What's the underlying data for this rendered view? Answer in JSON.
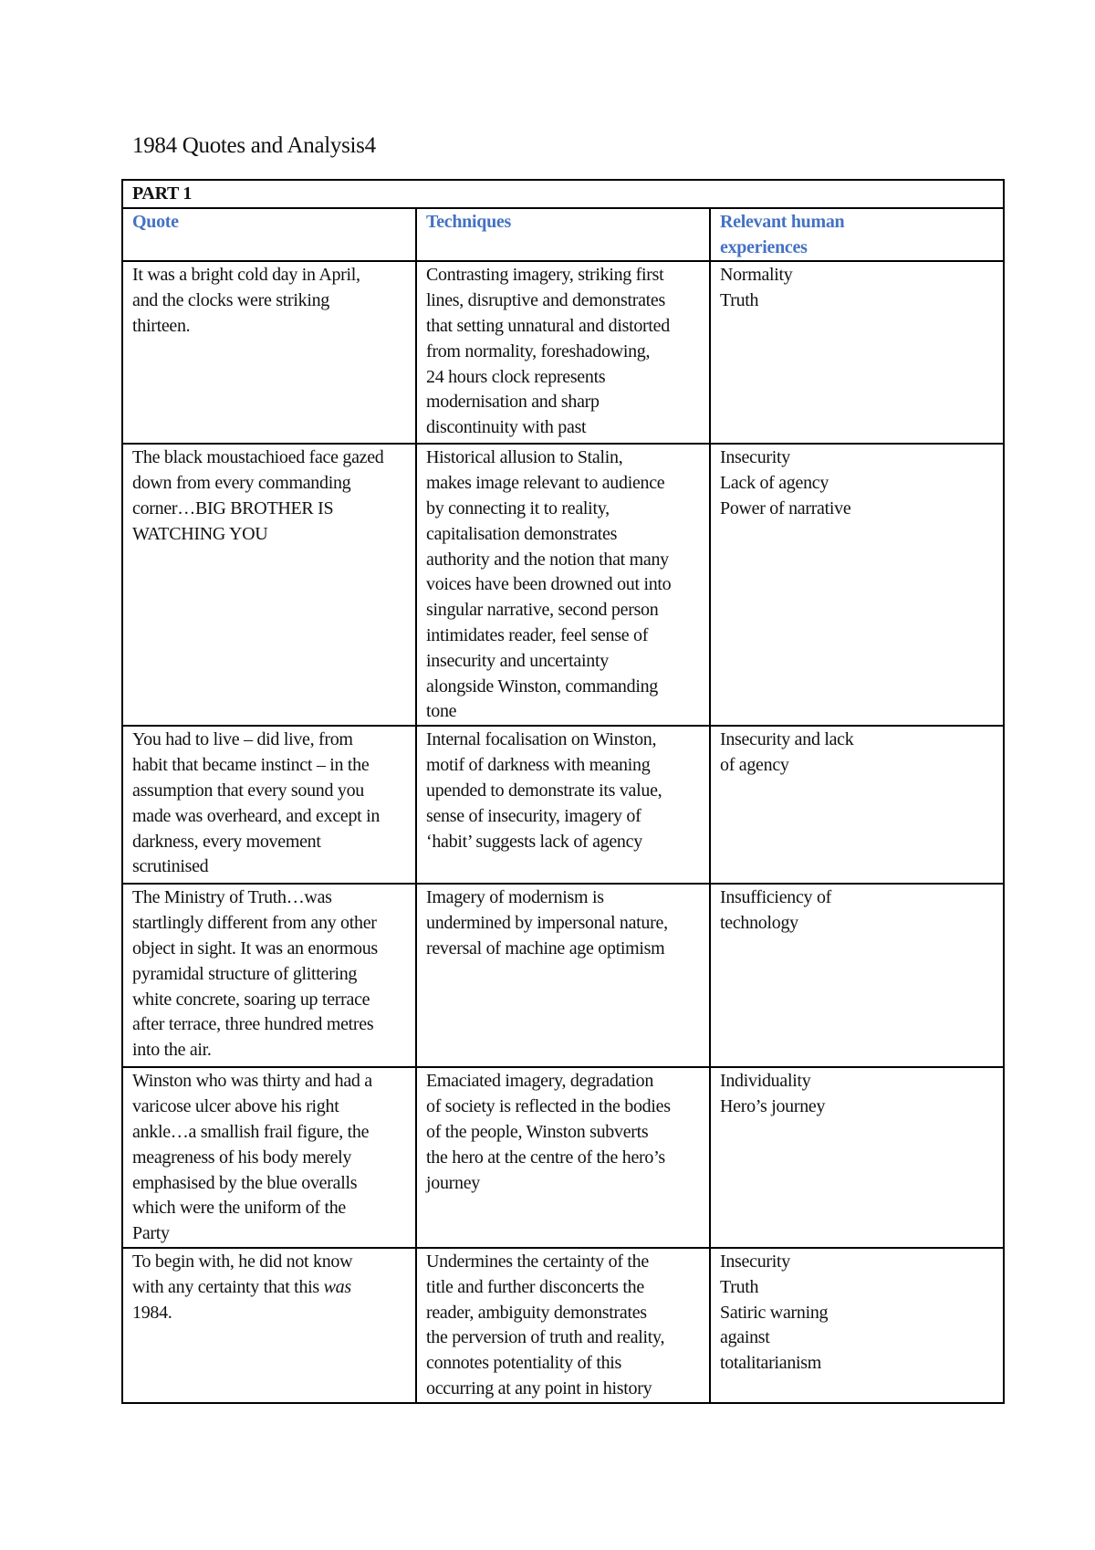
{
  "title": "1984 Quotes and Analysis4",
  "part": "PART 1",
  "headers": [
    "Quote",
    "Techniques",
    "Relevant human\nexperiences"
  ],
  "rows": [
    {
      "quote": "It was a bright cold day in April,\nand the clocks were striking\nthirteen.",
      "techniques": "Contrasting imagery, striking first\nlines, disruptive and demonstrates\nthat setting unnatural and distorted\nfrom normality, foreshadowing,\n24 hours clock represents\nmodernisation and sharp\ndiscontinuity with past",
      "experiences": "Normality\nTruth"
    },
    {
      "quote": "The black moustachioed face gazed\ndown from every commanding\ncorner…BIG BROTHER IS\nWATCHING YOU",
      "techniques": "Historical allusion to Stalin,\nmakes image relevant to audience\nby connecting it to reality,\ncapitalisation demonstrates\nauthority and the notion that many\nvoices have been drowned out into\nsingular narrative, second person\nintimidates reader, feel sense of\ninsecurity and uncertainty\nalongside Winston, commanding\ntone",
      "experiences": "Insecurity\nLack of agency\nPower of narrative"
    },
    {
      "quote": "You had to live – did live, from\nhabit that became instinct – in the\nassumption that every sound you\nmade was overheard, and except in\ndarkness, every movement\nscrutinised",
      "techniques": "Internal focalisation on Winston,\nmotif of darkness with meaning\nupended to demonstrate its value,\nsense of insecurity, imagery of\n‘habit’ suggests lack of agency",
      "experiences": "Insecurity and lack\nof agency"
    },
    {
      "quote": "The Ministry of Truth…was\nstartlingly different from any other\nobject in sight. It was an enormous\npyramidal structure of glittering\nwhite concrete, soaring up terrace\nafter terrace, three hundred metres\ninto the air.",
      "techniques": "Imagery of modernism is\nundermined by impersonal nature,\nreversal of machine age optimism",
      "experiences": "Insufficiency of\ntechnology"
    },
    {
      "quote": "Winston who was thirty and had a\nvaricose ulcer above his right\nankle…a smallish frail figure, the\nmeagreness of his body merely\nemphasised by the blue overalls\nwhich were the uniform of the\nParty",
      "techniques": "Emaciated imagery, degradation\nof society is reflected in the bodies\nof the people, Winston subverts\nthe hero at the centre of the hero’s\njourney",
      "experiences": "Individuality\nHero’s journey"
    },
    {
      "quote_pre": "To begin with, he did not know\nwith any certainty that this ",
      "quote_em": "was",
      "quote_post": "\n1984.",
      "techniques": "Undermines the certainty of the\ntitle and further disconcerts the\nreader, ambiguity demonstrates\nthe perversion of truth and reality,\nconnotes potentiality of this\noccurring at any point in history",
      "experiences": "Insecurity\nTruth\nSatiric warning\nagainst\ntotalitarianism"
    }
  ]
}
